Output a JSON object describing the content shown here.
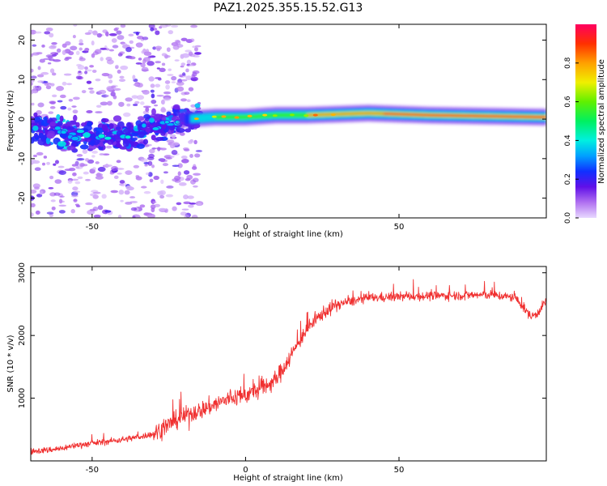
{
  "title": "PAZ1.2025.355.15.52.G13",
  "colors": {
    "snr_line": "#f03030",
    "frame": "#000000"
  },
  "chart_data": [
    {
      "type": "heatmap",
      "xlabel": "Height of straight line (km)",
      "ylabel": "Frequency (Hz)",
      "xlim": [
        -70,
        98
      ],
      "ylim": [
        -25,
        24
      ],
      "x_ticks": [
        -50,
        0,
        50
      ],
      "y_ticks": [
        -20,
        -10,
        0,
        10,
        20
      ],
      "colorbar": {
        "label": "Normalized spectral amplitude",
        "range": [
          0.0,
          1.0
        ],
        "ticks": [
          0.0,
          0.2,
          0.4,
          0.6,
          0.8
        ],
        "colormap": "rainbow"
      },
      "ridge": [
        {
          "x": -70,
          "y": -2.5
        },
        {
          "x": -60,
          "y": -3.0
        },
        {
          "x": -50,
          "y": -4.5
        },
        {
          "x": -40,
          "y": -4.5
        },
        {
          "x": -32,
          "y": -2.5
        },
        {
          "x": -25,
          "y": -1.0
        },
        {
          "x": -20,
          "y": 0.0
        },
        {
          "x": -10,
          "y": 0.5
        },
        {
          "x": 0,
          "y": 0.5
        },
        {
          "x": 10,
          "y": 1.0
        },
        {
          "x": 20,
          "y": 1.0
        },
        {
          "x": 40,
          "y": 1.5
        },
        {
          "x": 60,
          "y": 1.0
        },
        {
          "x": 98,
          "y": 0.5
        }
      ]
    },
    {
      "type": "line",
      "xlabel": "Height of straight line (km)",
      "ylabel": "SNR (10 * v/v)",
      "xlim": [
        -70,
        98
      ],
      "ylim": [
        0,
        3100
      ],
      "x_ticks": [
        -50,
        0,
        50
      ],
      "y_ticks": [
        1000,
        2000,
        3000
      ],
      "series": [
        {
          "values": [
            {
              "x": -70,
              "y": 150
            },
            {
              "x": -65,
              "y": 170
            },
            {
              "x": -60,
              "y": 200
            },
            {
              "x": -55,
              "y": 250
            },
            {
              "x": -50,
              "y": 280
            },
            {
              "x": -45,
              "y": 310
            },
            {
              "x": -40,
              "y": 340
            },
            {
              "x": -35,
              "y": 380
            },
            {
              "x": -30,
              "y": 430
            },
            {
              "x": -25,
              "y": 580
            },
            {
              "x": -20,
              "y": 720
            },
            {
              "x": -15,
              "y": 800
            },
            {
              "x": -10,
              "y": 900
            },
            {
              "x": -5,
              "y": 1000
            },
            {
              "x": 0,
              "y": 1050
            },
            {
              "x": 5,
              "y": 1150
            },
            {
              "x": 10,
              "y": 1300
            },
            {
              "x": 15,
              "y": 1700
            },
            {
              "x": 20,
              "y": 2100
            },
            {
              "x": 25,
              "y": 2350
            },
            {
              "x": 30,
              "y": 2500
            },
            {
              "x": 35,
              "y": 2550
            },
            {
              "x": 40,
              "y": 2600
            },
            {
              "x": 50,
              "y": 2620
            },
            {
              "x": 60,
              "y": 2630
            },
            {
              "x": 70,
              "y": 2640
            },
            {
              "x": 80,
              "y": 2650
            },
            {
              "x": 88,
              "y": 2600
            },
            {
              "x": 93,
              "y": 2300
            },
            {
              "x": 95,
              "y": 2350
            },
            {
              "x": 98,
              "y": 2550
            }
          ]
        }
      ]
    }
  ]
}
